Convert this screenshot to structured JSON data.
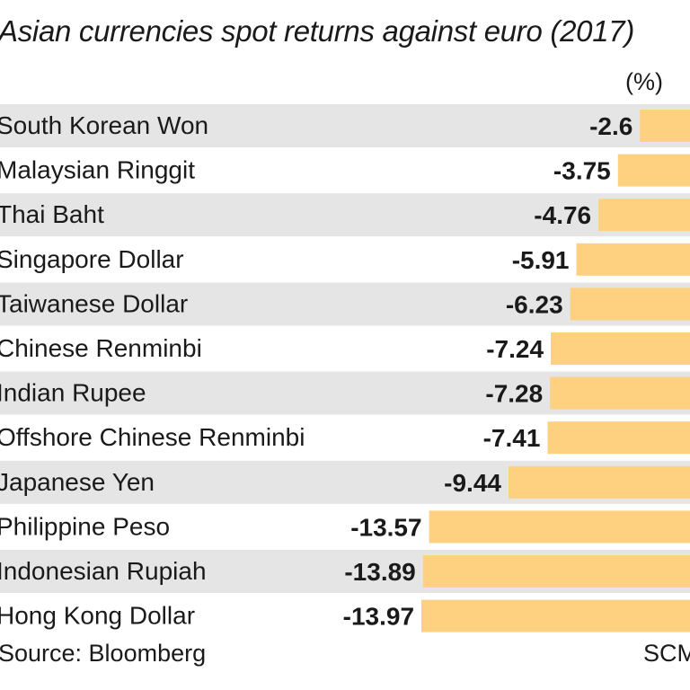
{
  "chart_data": {
    "type": "bar",
    "orientation": "horizontal",
    "title": "Asian currencies spot returns against euro (2017)",
    "unit_label": "(%)",
    "categories": [
      "South Korean Won",
      "Malaysian Ringgit",
      "Thai Baht",
      "Singapore Dollar",
      "Taiwanese Dollar",
      "Chinese Renminbi",
      "Indian Rupee",
      "Offshore Chinese Renminbi",
      "Japanese Yen",
      "Philippine Peso",
      "Indonesian Rupiah",
      "Hong Kong Dollar"
    ],
    "values": [
      -2.6,
      -3.75,
      -4.76,
      -5.91,
      -6.23,
      -7.24,
      -7.28,
      -7.41,
      -9.44,
      -13.57,
      -13.89,
      -13.97
    ],
    "data_labels": [
      "-2.6",
      "-3.75",
      "-4.76",
      "-5.91",
      "-6.23",
      "-7.24",
      "-7.28",
      "-7.41",
      "-9.44",
      "-13.57",
      "-13.89",
      "-13.97"
    ],
    "xlim": [
      -14,
      0
    ],
    "grid": false,
    "legend": "none",
    "colors": {
      "bar": "#fdd17f",
      "stripe": "#e5e5e5",
      "text": "#1a1a1a"
    }
  },
  "footer": {
    "source": "Source: Bloomberg",
    "credit": "SCMP"
  }
}
